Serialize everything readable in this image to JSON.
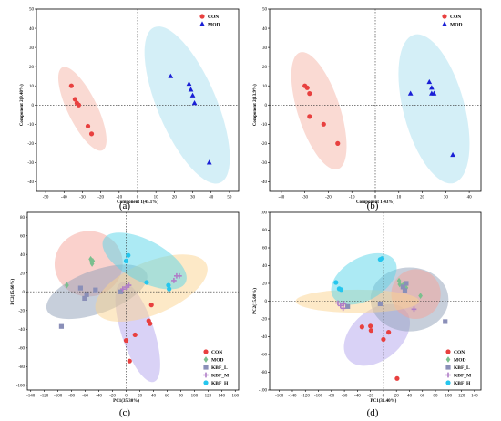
{
  "figure": {
    "panel_labels": [
      "(a)",
      "(b)",
      "(c)",
      "(d)"
    ]
  },
  "colors": {
    "CON": "#e8403f",
    "MOD": "#1a1fd6",
    "MOD_c": "#7bbf8e",
    "KBF_L": "#8a8fb8",
    "KBF_M": "#b07ec8",
    "KBF_H": "#25c6ee",
    "ell_CON": "#f6b5a8",
    "ell_MOD": "#a9dff0",
    "ell_MOD_c": "#a8d8b0",
    "ell_KBF_L": "#8fa0b8",
    "ell_KBF_M": "#b4a6ee",
    "ell_KBF_H": "#5ad6ea",
    "ell_CON_c": "#f6a49a",
    "ell_extra": "#fbd48f"
  },
  "chart_data": [
    {
      "type": "scatter",
      "panel": "(a)",
      "xlabel": "Component 1(45.1%)",
      "ylabel": "Component 2(9.40%)",
      "xlim": [
        -55,
        55
      ],
      "ylim": [
        -45,
        50
      ],
      "xticks": [
        -50,
        -40,
        -30,
        -20,
        -10,
        0,
        10,
        20,
        30,
        40,
        50
      ],
      "yticks": [
        -40,
        -30,
        -20,
        -10,
        0,
        10,
        20,
        30,
        40,
        50
      ],
      "legend_position": "top-right",
      "series": [
        {
          "name": "CON",
          "marker": "circle",
          "x": [
            -36,
            -34,
            -33,
            -32,
            -27,
            -25
          ],
          "y": [
            10,
            3,
            1,
            0,
            -11,
            -15
          ]
        },
        {
          "name": "MOD",
          "marker": "triangle",
          "x": [
            18,
            28,
            29,
            30,
            31,
            39
          ],
          "y": [
            15,
            11,
            8,
            5,
            1,
            -30
          ]
        }
      ],
      "ellipses": [
        {
          "series": "CON",
          "cx": -30,
          "cy": -2,
          "rx": 8,
          "ry": 24,
          "angle": -26
        },
        {
          "series": "MOD",
          "cx": 27,
          "cy": 0,
          "rx": 16,
          "ry": 44,
          "angle": -23
        }
      ]
    },
    {
      "type": "scatter",
      "panel": "(b)",
      "xlabel": "Component 1(43%)",
      "ylabel": "Component 2(13.9%)",
      "xlim": [
        -45,
        45
      ],
      "ylim": [
        -45,
        50
      ],
      "xticks": [
        -40,
        -30,
        -20,
        -10,
        0,
        10,
        20,
        30,
        40
      ],
      "yticks": [
        -40,
        -30,
        -20,
        -10,
        0,
        10,
        20,
        30,
        40,
        50
      ],
      "legend_position": "top-right",
      "series": [
        {
          "name": "CON",
          "marker": "circle",
          "x": [
            -30,
            -29,
            -28,
            -28,
            -22,
            -16
          ],
          "y": [
            10,
            9,
            6,
            -6,
            -10,
            -20
          ]
        },
        {
          "name": "MOD",
          "marker": "triangle",
          "x": [
            15,
            23,
            24,
            24,
            25,
            33
          ],
          "y": [
            6,
            12,
            9,
            6,
            6,
            -26
          ]
        }
      ],
      "ellipses": [
        {
          "series": "CON",
          "cx": -24,
          "cy": -3,
          "rx": 9,
          "ry": 32,
          "angle": -18
        },
        {
          "series": "MOD",
          "cx": 25,
          "cy": -2,
          "rx": 13,
          "ry": 40,
          "angle": -15
        }
      ]
    },
    {
      "type": "scatter",
      "panel": "(c)",
      "xlabel": "PC1(35.30%)",
      "ylabel": "PC2(15.60%)",
      "xlim": [
        -145,
        165
      ],
      "ylim": [
        -105,
        85
      ],
      "xticks": [
        -140,
        -120,
        -100,
        -80,
        -60,
        -40,
        -20,
        0,
        20,
        40,
        60,
        80,
        100,
        120,
        140,
        160
      ],
      "yticks": [
        -100,
        -80,
        -60,
        -40,
        -20,
        0,
        20,
        40,
        60,
        80
      ],
      "legend_position": "bottom-right",
      "series": [
        {
          "name": "CON",
          "marker": "circle",
          "x": [
            0,
            5,
            13,
            33,
            35,
            37
          ],
          "y": [
            -52,
            -74,
            -46,
            -31,
            -34,
            -14
          ]
        },
        {
          "name": "MOD",
          "marker": "diamond",
          "x": [
            -87,
            -52,
            -51,
            -50,
            -49
          ],
          "y": [
            7,
            35,
            32,
            30,
            33
          ]
        },
        {
          "name": "KBF_L",
          "marker": "square",
          "x": [
            -95,
            -67,
            -61,
            -58,
            -45,
            -8
          ],
          "y": [
            -37,
            4,
            -7,
            -3,
            2,
            0
          ]
        },
        {
          "name": "KBF_M",
          "marker": "plus",
          "x": [
            -5,
            0,
            4,
            70,
            74,
            78
          ],
          "y": [
            3,
            5,
            7,
            12,
            17,
            17
          ]
        },
        {
          "name": "KBF_H",
          "marker": "circle",
          "x": [
            0,
            3,
            30,
            62,
            63
          ],
          "y": [
            33,
            39,
            10,
            7,
            3
          ]
        }
      ],
      "ellipses": [
        {
          "series": "CON",
          "cx": 17,
          "cy": -43,
          "rx": 24,
          "ry": 56,
          "angle": -18
        },
        {
          "series": "MOD",
          "cx": -55,
          "cy": 30,
          "rx": 50,
          "ry": 35,
          "angle": -8
        },
        {
          "series": "KBF_L",
          "cx": -43,
          "cy": 0,
          "rx": 78,
          "ry": 23,
          "angle": -20
        },
        {
          "series": "KBF_M",
          "cx": 37,
          "cy": 4,
          "rx": 88,
          "ry": 28,
          "angle": -23
        },
        {
          "series": "KBF_H",
          "cx": 27,
          "cy": 33,
          "rx": 68,
          "ry": 22,
          "angle": 28
        }
      ]
    },
    {
      "type": "scatter",
      "panel": "(d)",
      "xlabel": "PC1(31.40%)",
      "ylabel": "PC2(15.60%)",
      "xlim": [
        -175,
        150
      ],
      "ylim": [
        -100,
        100
      ],
      "xticks": [
        -160,
        -140,
        -120,
        -100,
        -80,
        -60,
        -40,
        -20,
        0,
        20,
        40,
        60,
        80,
        100,
        120,
        140
      ],
      "yticks": [
        -100,
        -80,
        -60,
        -40,
        -20,
        0,
        20,
        40,
        60,
        80,
        100
      ],
      "legend_position": "bottom-right",
      "series": [
        {
          "name": "CON",
          "marker": "circle",
          "x": [
            -33,
            -20,
            -19,
            0,
            8,
            21
          ],
          "y": [
            -29,
            -28,
            -33,
            -43,
            -35,
            -87
          ]
        },
        {
          "name": "MOD",
          "marker": "diamond",
          "x": [
            24,
            25,
            30,
            35,
            57
          ],
          "y": [
            23,
            19,
            18,
            15,
            6
          ]
        },
        {
          "name": "KBF_L",
          "marker": "square",
          "x": [
            -55,
            -5,
            30,
            33,
            35,
            95
          ],
          "y": [
            -6,
            -3,
            16,
            12,
            20,
            -23
          ]
        },
        {
          "name": "KBF_M",
          "marker": "plus",
          "x": [
            -70,
            -66,
            -62,
            -61,
            47
          ],
          "y": [
            -2,
            -5,
            -8,
            -3,
            -9
          ]
        },
        {
          "name": "KBF_H",
          "marker": "circle",
          "x": [
            -73,
            -68,
            -65,
            -5,
            -2
          ],
          "y": [
            21,
            14,
            13,
            47,
            48
          ]
        }
      ],
      "ellipses": [
        {
          "series": "CON",
          "cx": -10,
          "cy": -38,
          "rx": 58,
          "ry": 28,
          "angle": -40
        },
        {
          "series": "MOD",
          "cx": 40,
          "cy": 2,
          "rx": 60,
          "ry": 36,
          "angle": 0
        },
        {
          "series": "KBF_L",
          "cx": 50,
          "cy": 8,
          "rx": 38,
          "ry": 28,
          "angle": 15
        },
        {
          "series": "KBF_M",
          "cx": -40,
          "cy": 0,
          "rx": 95,
          "ry": 13,
          "angle": 0
        },
        {
          "series": "KBF_H",
          "cx": -30,
          "cy": 25,
          "rx": 55,
          "ry": 24,
          "angle": -30
        }
      ]
    }
  ]
}
